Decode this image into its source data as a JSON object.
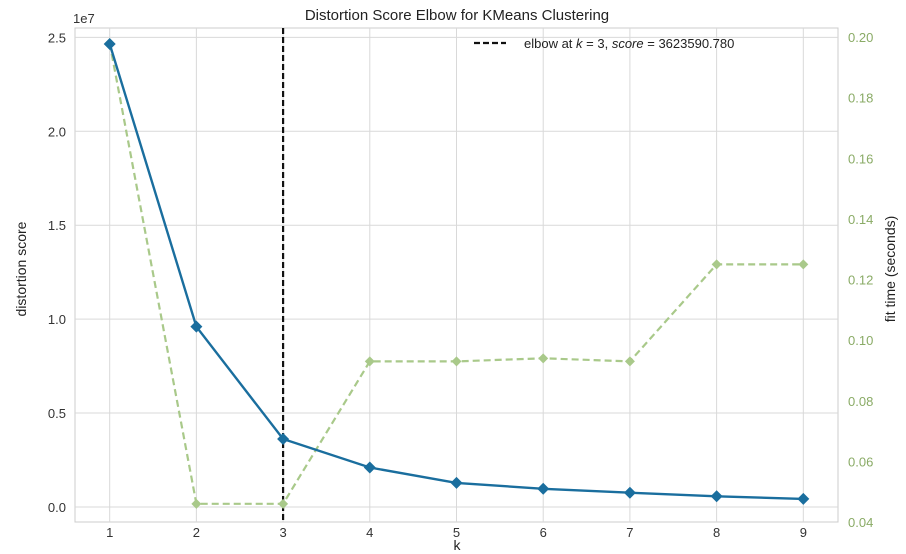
{
  "chart_data": {
    "type": "line",
    "title": "Distortion Score Elbow for KMeans Clustering",
    "xlabel": "k",
    "ylabel": "distortion score",
    "y2label": "fit time (seconds)",
    "y_offset_label": "1e7",
    "x": [
      1,
      2,
      3,
      4,
      5,
      6,
      7,
      8,
      9
    ],
    "xlim": [
      0.6,
      9.4
    ],
    "ylim": [
      -0.08,
      2.55
    ],
    "y2lim": [
      0.04,
      0.203
    ],
    "x_ticks": [
      "1",
      "2",
      "3",
      "4",
      "5",
      "6",
      "7",
      "8",
      "9"
    ],
    "y_ticks": [
      {
        "value": 0.0,
        "label": "0.0"
      },
      {
        "value": 0.5,
        "label": "0.5"
      },
      {
        "value": 1.0,
        "label": "1.0"
      },
      {
        "value": 1.5,
        "label": "1.5"
      },
      {
        "value": 2.0,
        "label": "2.0"
      },
      {
        "value": 2.5,
        "label": "2.5"
      }
    ],
    "y2_ticks": [
      {
        "value": 0.04,
        "label": "0.04"
      },
      {
        "value": 0.06,
        "label": "0.06"
      },
      {
        "value": 0.08,
        "label": "0.08"
      },
      {
        "value": 0.1,
        "label": "0.10"
      },
      {
        "value": 0.12,
        "label": "0.12"
      },
      {
        "value": 0.14,
        "label": "0.14"
      },
      {
        "value": 0.16,
        "label": "0.16"
      },
      {
        "value": 0.18,
        "label": "0.18"
      },
      {
        "value": 0.2,
        "label": "0.20"
      }
    ],
    "series": [
      {
        "axis": "left",
        "color": "#1a6e9e",
        "values": [
          2.465,
          0.96,
          0.362,
          0.21,
          0.128,
          0.097,
          0.076,
          0.057,
          0.043
        ]
      },
      {
        "axis": "right",
        "color": "#a9c98a",
        "dashed": true,
        "values": [
          0.198,
          0.046,
          0.046,
          0.093,
          0.093,
          0.094,
          0.093,
          0.125,
          0.125
        ]
      }
    ],
    "elbow": {
      "k": 3,
      "legend_prefix": "elbow at ",
      "legend_k": "k",
      "legend_mid": " = 3, ",
      "legend_score": "score",
      "legend_suffix": " = 3623590.780"
    },
    "grid": true,
    "legend_position": "top-right"
  }
}
